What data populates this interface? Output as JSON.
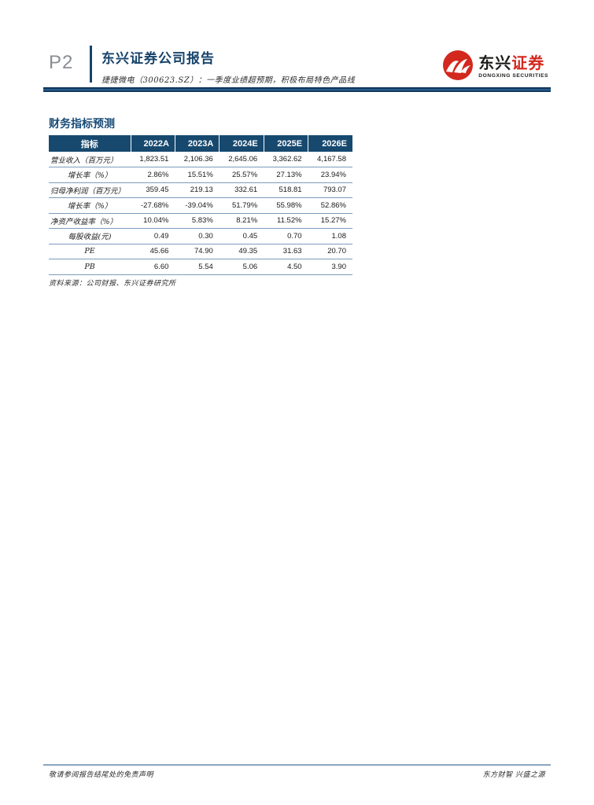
{
  "page": {
    "number": "P2"
  },
  "header": {
    "report_type": "东兴证券公司报告",
    "report_title": "捷捷微电（300623.SZ）：一季度业绩超预期，积极布局特色产品线",
    "logo": {
      "cn_black": "东兴",
      "cn_red": "证券",
      "en": "DONGXING SECURITIES"
    }
  },
  "section": {
    "title": "财务指标预测"
  },
  "table": {
    "columns": [
      "指标",
      "2022A",
      "2023A",
      "2024E",
      "2025E",
      "2026E"
    ],
    "rows": [
      {
        "label": "营业收入（百万元）",
        "indent": false,
        "values": [
          "1,823.51",
          "2,106.36",
          "2,645.06",
          "3,362.62",
          "4,167.58"
        ]
      },
      {
        "label": "增长率（%）",
        "indent": true,
        "values": [
          "2.86%",
          "15.51%",
          "25.57%",
          "27.13%",
          "23.94%"
        ]
      },
      {
        "label": "归母净利润（百万元）",
        "indent": false,
        "values": [
          "359.45",
          "219.13",
          "332.61",
          "518.81",
          "793.07"
        ]
      },
      {
        "label": "增长率（%）",
        "indent": true,
        "values": [
          "-27.68%",
          "-39.04%",
          "51.79%",
          "55.98%",
          "52.86%"
        ]
      },
      {
        "label": "净资产收益率（%）",
        "indent": false,
        "values": [
          "10.04%",
          "5.83%",
          "8.21%",
          "11.52%",
          "15.27%"
        ]
      },
      {
        "label": "每股收益(元)",
        "indent": true,
        "values": [
          "0.49",
          "0.30",
          "0.45",
          "0.70",
          "1.08"
        ]
      },
      {
        "label": "PE",
        "indent": true,
        "values": [
          "45.66",
          "74.90",
          "49.35",
          "31.63",
          "20.70"
        ]
      },
      {
        "label": "PB",
        "indent": true,
        "values": [
          "6.60",
          "5.54",
          "5.06",
          "4.50",
          "3.90"
        ]
      }
    ],
    "source": "资料来源：公司财报、东兴证券研究所"
  },
  "footer": {
    "left": "敬请参阅报告结尾处的免责声明",
    "right": "东方财智 兴盛之源"
  },
  "colors": {
    "navy": "#17496f",
    "brand_red": "#d3281e",
    "row_line": "#7b9cbd"
  }
}
